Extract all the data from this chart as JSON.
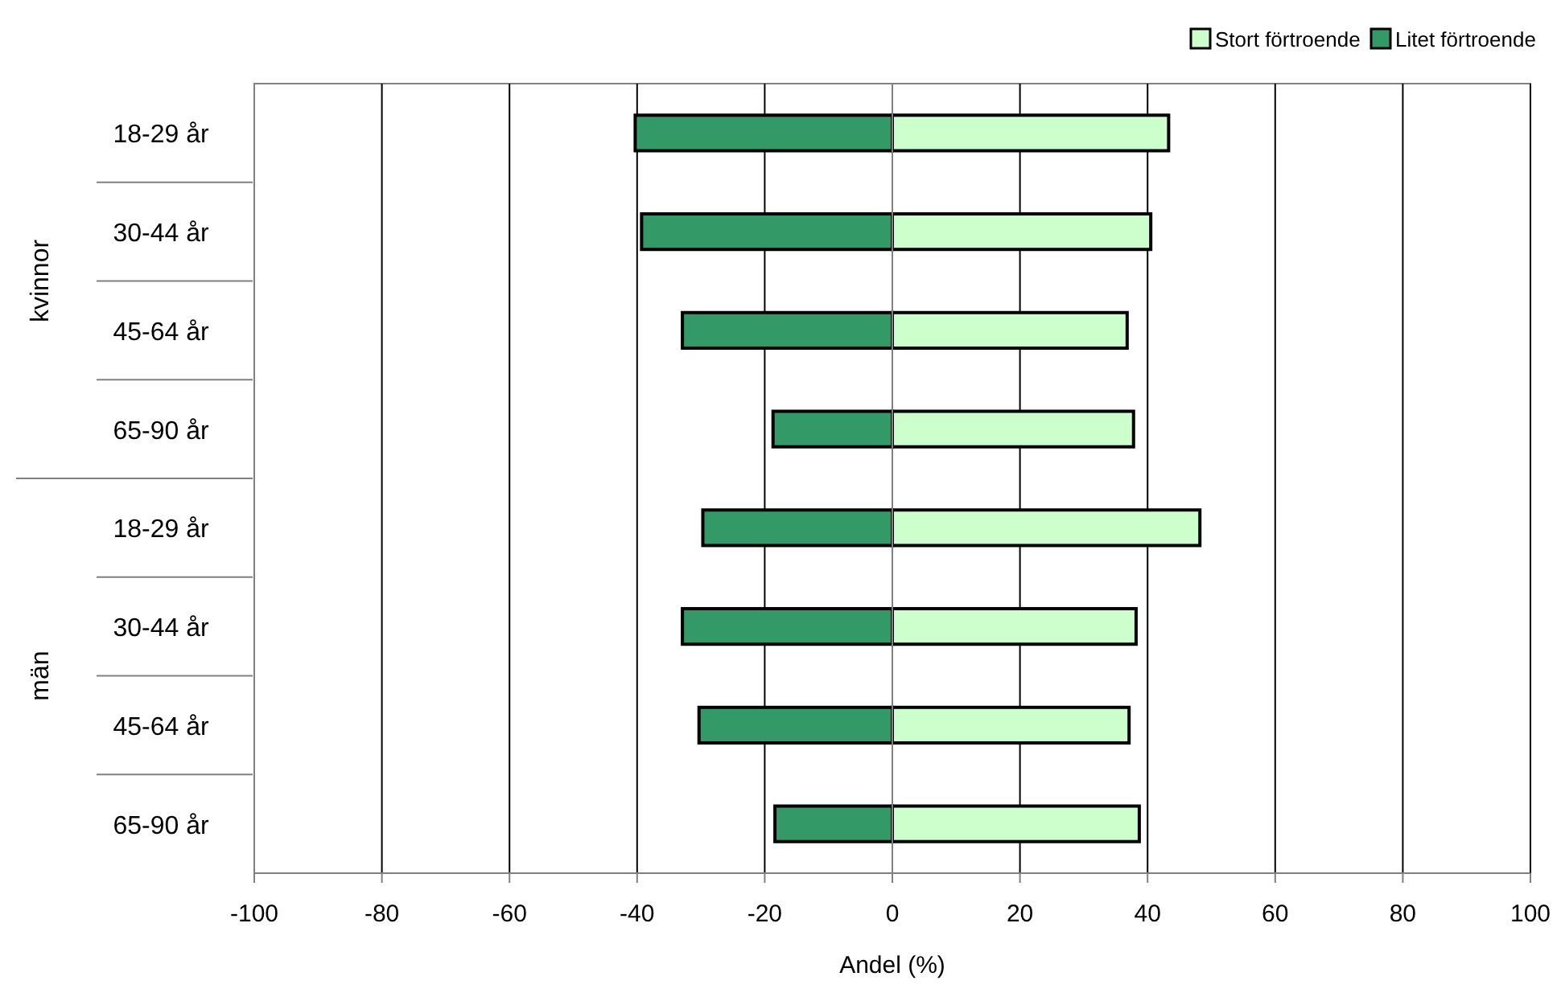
{
  "chart_data": {
    "type": "bar",
    "orientation": "horizontal",
    "stacked": true,
    "xlabel": "Andel (%)",
    "categories": [
      "18-29 år",
      "30-44 år",
      "45-64 år",
      "65-90 år",
      "18-29 år",
      "30-44 år",
      "45-64 år",
      "65-90 år"
    ],
    "series": [
      {
        "name": "Stort förtroende",
        "color": "#ccffcc",
        "values": [
          43.3,
          40.5,
          36.8,
          37.8,
          48.2,
          38.2,
          37.1,
          38.7
        ]
      },
      {
        "name": "Litet förtroende",
        "color": "#339966",
        "values": [
          -40.3,
          -39.3,
          -32.9,
          -18.7,
          -29.7,
          -32.9,
          -30.3,
          -18.4
        ]
      }
    ],
    "annotations": [
      "kvinnor",
      "män"
    ],
    "xlim": [
      -100,
      100
    ],
    "xticks": [
      -100,
      -80,
      -60,
      -40,
      -20,
      0,
      20,
      40,
      60,
      80,
      100
    ],
    "grid": "x",
    "legend": "top right"
  }
}
